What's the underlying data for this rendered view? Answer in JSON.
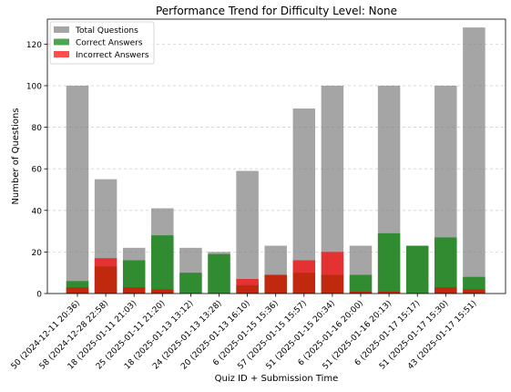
{
  "chart_data": {
    "type": "bar",
    "title": "Performance Trend for Difficulty Level: None",
    "xlabel": "Quiz ID + Submission Time",
    "ylabel": "Number of Questions",
    "ylim": [
      0,
      132
    ],
    "yticks": [
      0,
      20,
      40,
      60,
      80,
      100,
      120
    ],
    "grid": "y-dashed",
    "legend_position": "top-left",
    "categories": [
      "50 (2024-12-11 20:36)",
      "58 (2024-12-28 22:58)",
      "18 (2025-01-11 21:03)",
      "25 (2025-01-11 21:20)",
      "18 (2025-01-13 13:12)",
      "24 (2025-01-13 13:28)",
      "20 (2025-01-13 16:10)",
      "6 (2025-01-15 15:36)",
      "57 (2025-01-15 15:57)",
      "51 (2025-01-15 20:34)",
      "6 (2025-01-16 20:00)",
      "51 (2025-01-16 20:13)",
      "6 (2025-01-17 15:17)",
      "51 (2025-01-17 15:30)",
      "43 (2025-01-17 15:51)"
    ],
    "series": [
      {
        "name": "Total Questions",
        "color": "#7f7f7f",
        "opacity": 0.7,
        "values": [
          100,
          55,
          22,
          41,
          22,
          20,
          59,
          23,
          89,
          100,
          23,
          100,
          23,
          100,
          128
        ]
      },
      {
        "name": "Correct Answers",
        "color": "#008000",
        "opacity": 0.7,
        "values": [
          6,
          13,
          16,
          28,
          10,
          19,
          4,
          9,
          10,
          9,
          9,
          29,
          23,
          27,
          8
        ]
      },
      {
        "name": "Incorrect Answers",
        "color": "#ff0000",
        "opacity": 0.7,
        "values": [
          3,
          17,
          3,
          2,
          0,
          0,
          7,
          9,
          16,
          20,
          1,
          1,
          0,
          3,
          2
        ]
      }
    ]
  }
}
